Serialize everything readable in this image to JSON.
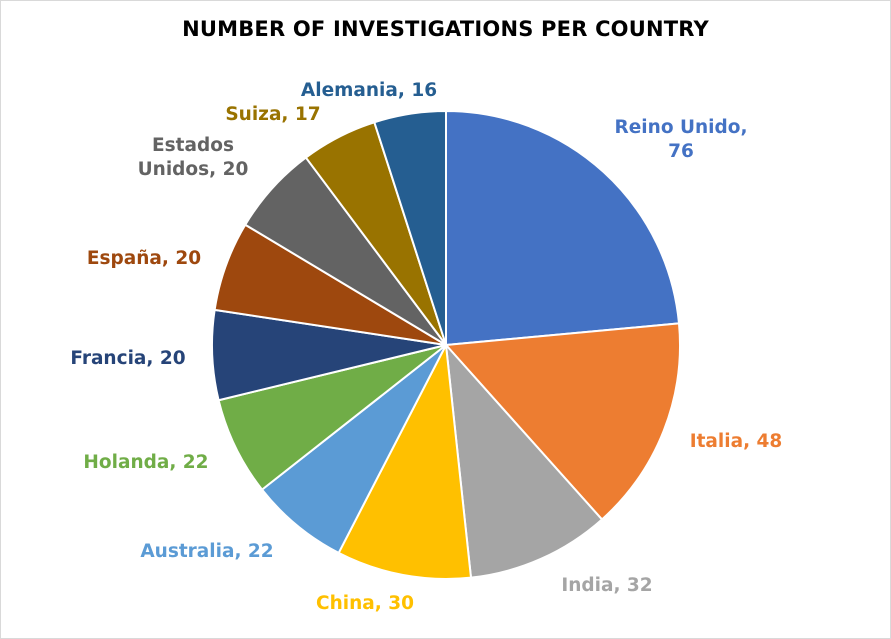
{
  "chart_data": {
    "type": "pie",
    "title": "NUMBER OF INVESTIGATIONS PER COUNTRY",
    "categories": [
      "Reino Unido",
      "Italia",
      "India",
      "China",
      "Australia",
      "Holanda",
      "Francia",
      "España",
      "Estados Unidos",
      "Suiza",
      "Alemania"
    ],
    "values": [
      76,
      48,
      32,
      30,
      22,
      22,
      20,
      20,
      20,
      17,
      16
    ],
    "colors": [
      "#4472c4",
      "#ed7d31",
      "#a5a5a5",
      "#ffc000",
      "#5b9bd5",
      "#70ad47",
      "#264478",
      "#9e480e",
      "#636363",
      "#997300",
      "#255e91"
    ],
    "data_labels": [
      [
        "Reino Unido,",
        "76"
      ],
      [
        "Italia, 48"
      ],
      [
        "India, 32"
      ],
      [
        "China, 30"
      ],
      [
        "Australia, 22"
      ],
      [
        "Holanda, 22"
      ],
      [
        "Francia, 20"
      ],
      [
        "España, 20"
      ],
      [
        "Estados",
        "Unidos, 20"
      ],
      [
        "Suiza, 17"
      ],
      [
        "Alemania, 16"
      ]
    ],
    "legend": "none"
  }
}
